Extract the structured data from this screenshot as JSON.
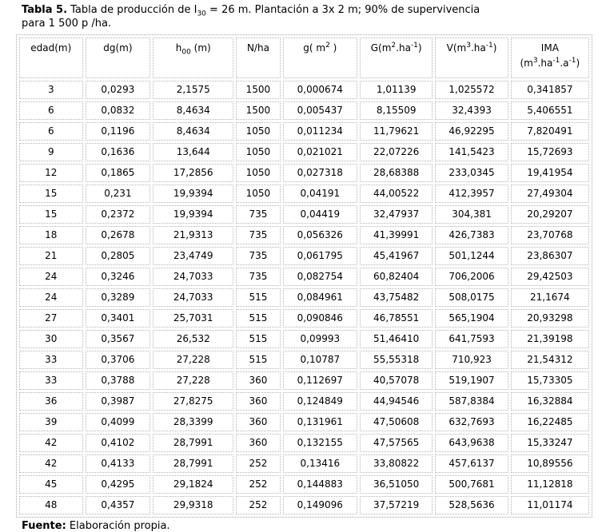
{
  "caption": {
    "bold": "Tabla 5.",
    "rest": " Tabla de producción de I_{30} = 26 m. Plantación a 3x 2 m; 90% de supervivencia\npara 1 500 p /ha."
  },
  "source": {
    "bold": "Fuente:",
    "rest": " Elaboración propia."
  },
  "table": {
    "headers": [
      "edad(m)",
      "dg(m)",
      "h_{00} (m)",
      "N/ha",
      "g( m^{2} )",
      "G(m^{2}.ha^{-1})",
      "V(m^{3}.ha^{-1})",
      "IMA\n(m^{3}.ha^{-1}.a^{-1})"
    ],
    "rows": [
      [
        "3",
        "0,0293",
        "2,1575",
        "1500",
        "0,000674",
        "1,01139",
        "1,025572",
        "0,341857"
      ],
      [
        "6",
        "0,0832",
        "8,4634",
        "1500",
        "0,005437",
        "8,15509",
        "32,4393",
        "5,406551"
      ],
      [
        "6",
        "0,1196",
        "8,4634",
        "1050",
        "0,011234",
        "11,79621",
        "46,92295",
        "7,820491"
      ],
      [
        "9",
        "0,1636",
        "13,644",
        "1050",
        "0,021021",
        "22,07226",
        "141,5423",
        "15,72693"
      ],
      [
        "12",
        "0,1865",
        "17,2856",
        "1050",
        "0,027318",
        "28,68388",
        "233,0345",
        "19,41954"
      ],
      [
        "15",
        "0,231",
        "19,9394",
        "1050",
        "0,04191",
        "44,00522",
        "412,3957",
        "27,49304"
      ],
      [
        "15",
        "0,2372",
        "19,9394",
        "735",
        "0,04419",
        "32,47937",
        "304,381",
        "20,29207"
      ],
      [
        "18",
        "0,2678",
        "21,9313",
        "735",
        "0,056326",
        "41,39991",
        "426,7383",
        "23,70768"
      ],
      [
        "21",
        "0,2805",
        "23,4749",
        "735",
        "0,061795",
        "45,41967",
        "501,1244",
        "23,86307"
      ],
      [
        "24",
        "0,3246",
        "24,7033",
        "735",
        "0,082754",
        "60,82404",
        "706,2006",
        "29,42503"
      ],
      [
        "24",
        "0,3289",
        "24,7033",
        "515",
        "0,084961",
        "43,75482",
        "508,0175",
        "21,1674"
      ],
      [
        "27",
        "0,3401",
        "25,7031",
        "515",
        "0,090846",
        "46,78551",
        "565,1904",
        "20,93298"
      ],
      [
        "30",
        "0,3567",
        "26,532",
        "515",
        "0,09993",
        "51,46410",
        "641,7593",
        "21,39198"
      ],
      [
        "33",
        "0,3706",
        "27,228",
        "515",
        "0,10787",
        "55,55318",
        "710,923",
        "21,54312"
      ],
      [
        "33",
        "0,3788",
        "27,228",
        "360",
        "0,112697",
        "40,57078",
        "519,1907",
        "15,73305"
      ],
      [
        "36",
        "0,3987",
        "27,8275",
        "360",
        "0,124849",
        "44,94546",
        "587,8384",
        "16,32884"
      ],
      [
        "39",
        "0,4099",
        "28,3399",
        "360",
        "0,131961",
        "47,50608",
        "632,7693",
        "16,22485"
      ],
      [
        "42",
        "0,4102",
        "28,7991",
        "360",
        "0,132155",
        "47,57565",
        "643,9638",
        "15,33247"
      ],
      [
        "42",
        "0,4133",
        "28,7991",
        "252",
        "0,13416",
        "33,80822",
        "457,6137",
        "10,89556"
      ],
      [
        "45",
        "0,4295",
        "29,1824",
        "252",
        "0,144883",
        "36,51050",
        "500,7681",
        "11,12818"
      ],
      [
        "48",
        "0,4357",
        "29,9318",
        "252",
        "0,149096",
        "37,57219",
        "528,5636",
        "11,01174"
      ]
    ]
  },
  "chart_data": {
    "type": "table",
    "title": "Tabla 5. Tabla de producción de I30 = 26 m. Plantación a 3x 2 m; 90% de supervivencia para 1 500 p /ha.",
    "columns": [
      "edad(m)",
      "dg(m)",
      "h00 (m)",
      "N/ha",
      "g( m2 )",
      "G(m2.ha-1)",
      "V(m3.ha-1)",
      "IMA (m3.ha-1.a-1)"
    ],
    "source": "Fuente: Elaboración propia."
  }
}
